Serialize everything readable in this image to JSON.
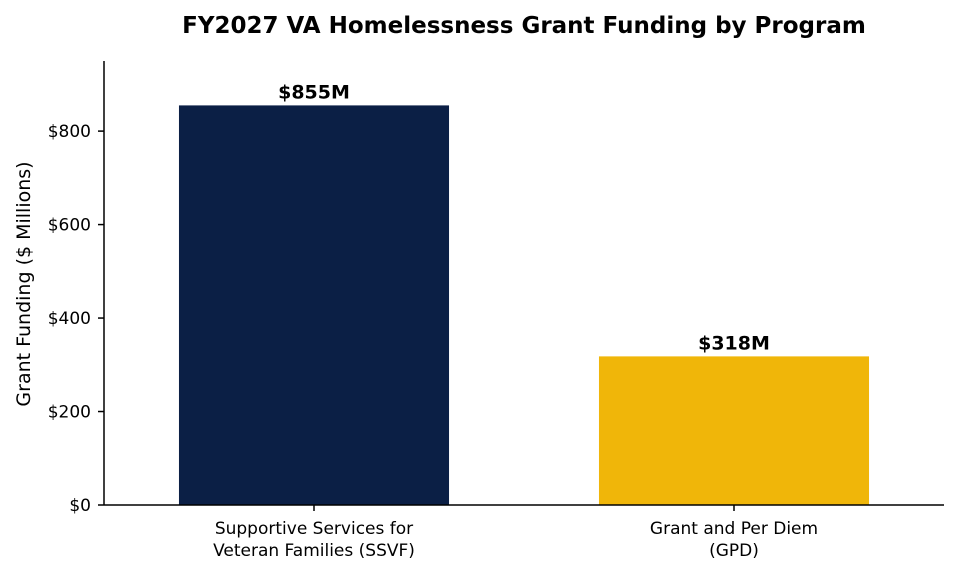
{
  "chart_data": {
    "type": "bar",
    "title": "FY2027 VA Homelessness Grant Funding by Program",
    "xlabel": "",
    "ylabel": "Grant Funding ($ Millions)",
    "categories": [
      [
        "Supportive Services for",
        "Veteran Families (SSVF)"
      ],
      [
        "Grant and Per Diem",
        "(GPD)"
      ]
    ],
    "values": [
      855,
      318
    ],
    "data_labels": [
      "$855M",
      "$318M"
    ],
    "colors": [
      "#0b1f45",
      "#f0b609"
    ],
    "ylim": [
      0,
      950
    ],
    "yticks": [
      0,
      200,
      400,
      600,
      800
    ],
    "ytick_labels": [
      "$0",
      "$200",
      "$400",
      "$600",
      "$800"
    ],
    "grid": false,
    "legend": "none"
  }
}
